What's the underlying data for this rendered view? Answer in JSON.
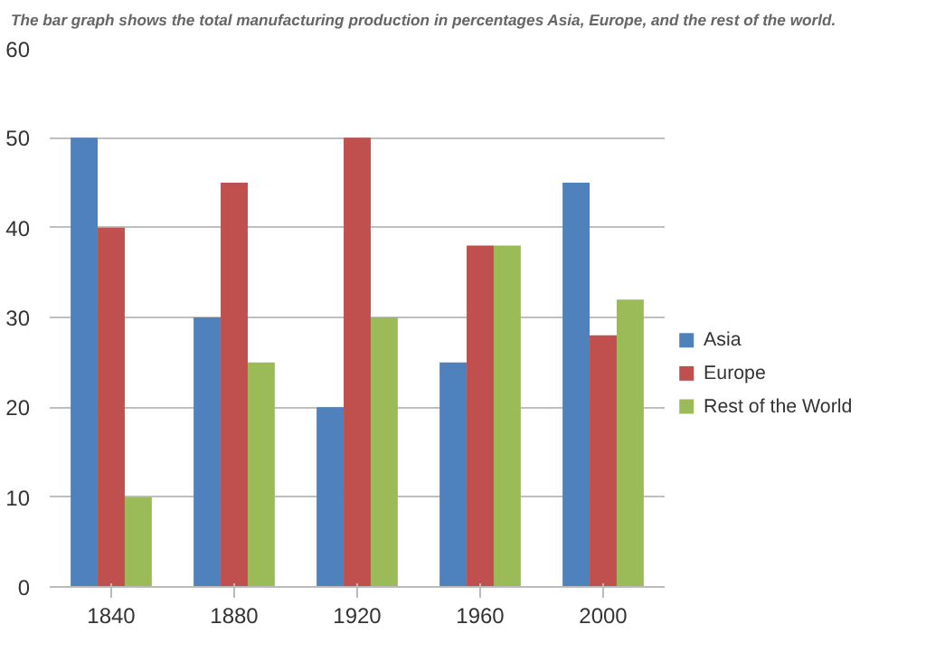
{
  "chart_data": {
    "type": "bar",
    "title": "The bar graph shows the total manufacturing production in percentages Asia, Europe, and the rest of the world.",
    "categories": [
      "1840",
      "1880",
      "1920",
      "1960",
      "2000"
    ],
    "series": [
      {
        "name": "Asia",
        "color": "#4f81bd",
        "values": [
          50,
          30,
          20,
          25,
          45
        ]
      },
      {
        "name": "Europe",
        "color": "#c0504d",
        "values": [
          40,
          45,
          50,
          38,
          28
        ]
      },
      {
        "name": "Rest of the World",
        "color": "#9bbb59",
        "values": [
          10,
          25,
          30,
          38,
          32
        ]
      }
    ],
    "ylim": [
      0,
      60
    ],
    "yticks": [
      0,
      10,
      20,
      30,
      40,
      50,
      60
    ],
    "grid": "y",
    "legend": "right"
  }
}
